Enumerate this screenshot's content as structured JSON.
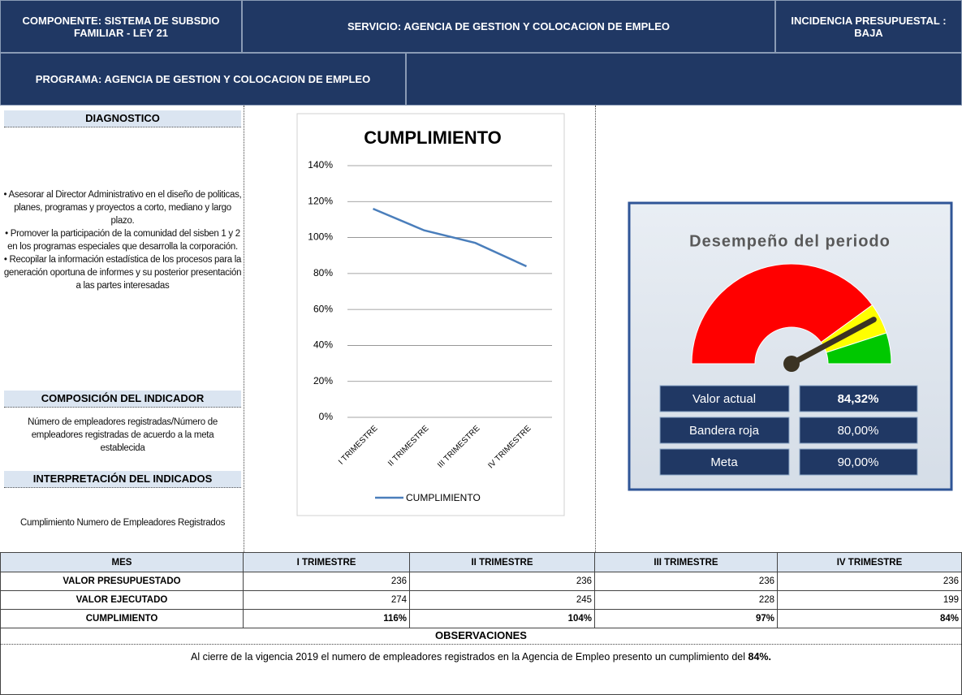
{
  "header": {
    "componente": "COMPONENTE: SISTEMA DE SUBSDIO FAMILIAR - LEY 21",
    "servicio": "SERVICIO: AGENCIA DE GESTION Y COLOCACION DE EMPLEO",
    "incidencia": "INCIDENCIA PRESUPUESTAL : BAJA",
    "programa": "PROGRAMA: AGENCIA DE GESTION Y COLOCACION DE EMPLEO"
  },
  "diagnostico": {
    "title": "DIAGNOSTICO",
    "items": [
      "• Asesorar al Director Administrativo en el diseño de politicas, planes, programas y proyectos a corto, mediano y largo plazo.",
      "• Promover la participación de la comunidad del sisben 1 y 2 en los programas especiales que desarrolla la corporación.",
      "• Recopilar la información estadística de los procesos para la generación  oportuna de informes y su posterior presentación a las partes interesadas"
    ]
  },
  "composicion": {
    "title": "COMPOSICIÓN DEL INDICADOR",
    "text": "Número de empleadores registradas/Número de empleadores registradas de acuerdo a la meta establecida"
  },
  "interpretacion": {
    "title": "INTERPRETACIÓN DEL INDICADOS",
    "text": "Cumplimiento Numero de Empleadores Registrados"
  },
  "chart_data": {
    "type": "line",
    "title": "CUMPLIMIENTO",
    "categories": [
      "I TRIMESTRE",
      "II TRIMESTRE",
      "III TRIMESTRE",
      "IV TRIMESTRE"
    ],
    "series": [
      {
        "name": "CUMPLIMIENTO",
        "color": "#4a7ebb",
        "values": [
          116,
          104,
          97,
          84
        ]
      }
    ],
    "ylim": [
      0,
      140
    ],
    "yticks": [
      {
        "value": 0,
        "label": "0%"
      },
      {
        "value": 20,
        "label": "20%"
      },
      {
        "value": 40,
        "label": "40%"
      },
      {
        "value": 60,
        "label": "60%"
      },
      {
        "value": 80,
        "label": "80%"
      },
      {
        "value": 100,
        "label": "100%"
      },
      {
        "value": 120,
        "label": "120%"
      },
      {
        "value": 140,
        "label": "140%"
      }
    ],
    "grid": true,
    "legend": "bottom"
  },
  "gauge": {
    "title": "Desempeño del periodo",
    "range": [
      0,
      100
    ],
    "colors": [
      "#ff0000",
      "#ffff00",
      "#00c800"
    ],
    "rows": [
      {
        "label": "Valor actual",
        "value": 84.32,
        "value_label": "84,32%"
      },
      {
        "label": "Bandera roja",
        "value": 80,
        "value_label": "80,00%"
      },
      {
        "label": "Meta",
        "value": 90,
        "value_label": "90,00%"
      }
    ]
  },
  "table": {
    "header": [
      "MES",
      "I TRIMESTRE",
      "II TRIMESTRE",
      "III TRIMESTRE",
      "IV TRIMESTRE"
    ],
    "rows": [
      [
        "VALOR PRESUPUESTADO",
        "236",
        "236",
        "236",
        "236"
      ],
      [
        "VALOR EJECUTADO",
        "274",
        "245",
        "228",
        "199"
      ],
      [
        "CUMPLIMIENTO",
        "116%",
        "104%",
        "97%",
        "84%"
      ]
    ]
  },
  "observaciones": {
    "title": "OBSERVACIONES",
    "text": "Al cierre de la vigencia 2019 el numero de empleadores registrados en la Agencia de Empleo presento un cumplimiento del ",
    "highlight": "84%."
  }
}
